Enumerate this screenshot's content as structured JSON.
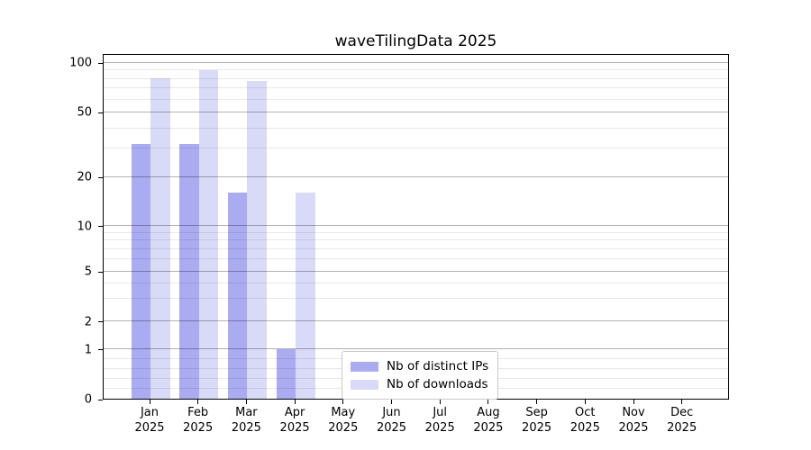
{
  "chart_data": {
    "type": "bar",
    "title": "waveTilingData 2025",
    "year_label": "2025",
    "months": [
      "Jan",
      "Feb",
      "Mar",
      "Apr",
      "May",
      "Jun",
      "Jul",
      "Aug",
      "Sep",
      "Oct",
      "Nov",
      "Dec"
    ],
    "series": [
      {
        "name": "Nb of distinct IPs",
        "color": "#aaabf0",
        "values": [
          32,
          32,
          16,
          1,
          0,
          0,
          0,
          0,
          0,
          0,
          0,
          0
        ]
      },
      {
        "name": "Nb of downloads",
        "color": "#d9daf7",
        "values": [
          80,
          90,
          77,
          16,
          0,
          0,
          0,
          0,
          0,
          0,
          0,
          0
        ]
      }
    ],
    "y_axis": {
      "scale": "symlog",
      "ticks": [
        0,
        1,
        2,
        5,
        10,
        20,
        50,
        100
      ],
      "minor_ticks": [
        0.2,
        0.4,
        0.6,
        0.8,
        3,
        4,
        6,
        7,
        8,
        9,
        30,
        40,
        60,
        70,
        80,
        90
      ],
      "range": [
        0,
        114
      ]
    },
    "xlabel": "",
    "ylabel": "",
    "grid": true,
    "legend": {
      "position": "lower center",
      "entries": [
        "Nb of distinct IPs",
        "Nb of downloads"
      ]
    }
  }
}
